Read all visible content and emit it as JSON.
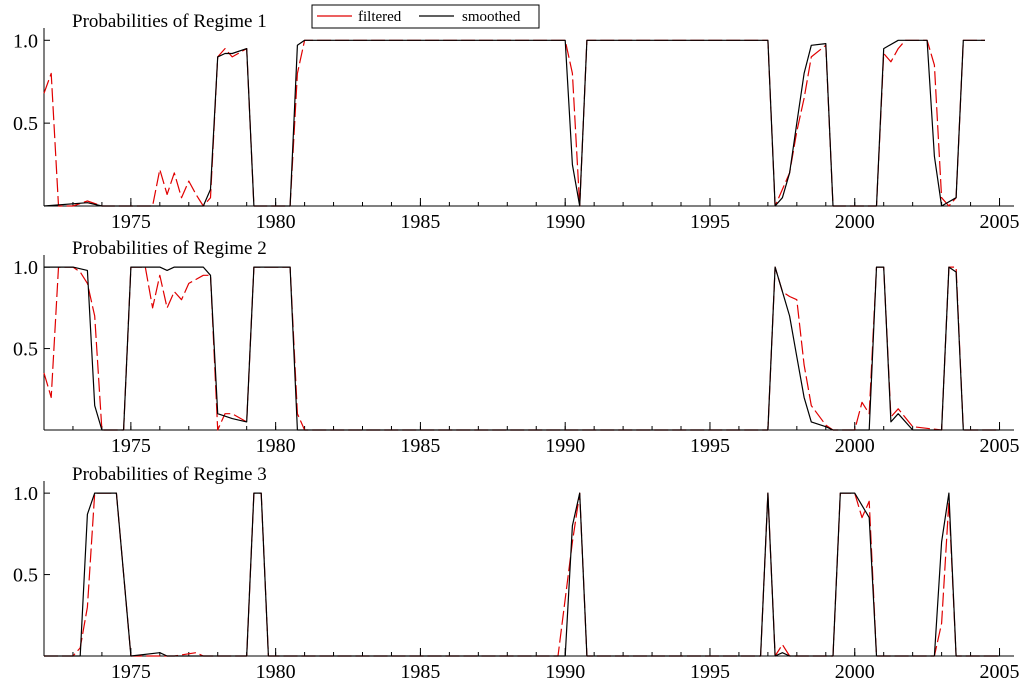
{
  "figure": {
    "legend": {
      "filtered_label": "filtered",
      "smoothed_label": "smoothed",
      "filtered_color": "#e00000",
      "smoothed_color": "#000000",
      "placement": "top, beside first panel title"
    }
  },
  "chart_data": [
    {
      "type": "line",
      "title": "Probabilities of Regime 1",
      "xlabel": "",
      "ylabel": "",
      "xlim": [
        1972.0,
        2005.5
      ],
      "ylim": [
        0,
        1.05
      ],
      "x_ticks": [
        "1975",
        "1980",
        "1985",
        "1990",
        "1995",
        "2000",
        "2005"
      ],
      "y_ticks": [
        "0.5",
        "1.0"
      ],
      "grid": false,
      "series": [
        {
          "name": "filtered",
          "style": "dashed",
          "color": "#e00000",
          "points": [
            [
              1972.0,
              0.68
            ],
            [
              1972.25,
              0.8
            ],
            [
              1972.5,
              0.0
            ],
            [
              1973.0,
              0.0
            ],
            [
              1973.5,
              0.03
            ],
            [
              1974.0,
              0.0
            ],
            [
              1975.0,
              0.0
            ],
            [
              1975.75,
              0.0
            ],
            [
              1976.0,
              0.22
            ],
            [
              1976.25,
              0.07
            ],
            [
              1976.5,
              0.2
            ],
            [
              1976.75,
              0.05
            ],
            [
              1977.0,
              0.15
            ],
            [
              1977.25,
              0.07
            ],
            [
              1977.5,
              0.0
            ],
            [
              1977.75,
              0.05
            ],
            [
              1978.0,
              0.9
            ],
            [
              1978.25,
              0.95
            ],
            [
              1978.5,
              0.9
            ],
            [
              1979.0,
              0.95
            ],
            [
              1979.25,
              0.0
            ],
            [
              1980.5,
              0.0
            ],
            [
              1980.75,
              0.8
            ],
            [
              1981.0,
              1.0
            ],
            [
              1990.0,
              1.0
            ],
            [
              1990.25,
              0.8
            ],
            [
              1990.5,
              0.0
            ],
            [
              1990.75,
              1.0
            ],
            [
              1997.0,
              1.0
            ],
            [
              1997.25,
              0.0
            ],
            [
              1997.5,
              0.1
            ],
            [
              1997.75,
              0.2
            ],
            [
              1998.0,
              0.45
            ],
            [
              1998.25,
              0.65
            ],
            [
              1998.5,
              0.9
            ],
            [
              1999.0,
              0.97
            ],
            [
              1999.25,
              0.0
            ],
            [
              2000.75,
              0.0
            ],
            [
              2001.0,
              0.92
            ],
            [
              2001.25,
              0.87
            ],
            [
              2001.5,
              0.95
            ],
            [
              2001.75,
              1.0
            ],
            [
              2002.5,
              1.0
            ],
            [
              2002.75,
              0.85
            ],
            [
              2003.0,
              0.05
            ],
            [
              2003.25,
              0.0
            ],
            [
              2003.5,
              0.05
            ],
            [
              2003.75,
              1.0
            ],
            [
              2004.5,
              1.0
            ]
          ]
        },
        {
          "name": "smoothed",
          "style": "solid",
          "color": "#000000",
          "points": [
            [
              1972.0,
              0.0
            ],
            [
              1973.5,
              0.02
            ],
            [
              1974.0,
              0.0
            ],
            [
              1977.5,
              0.0
            ],
            [
              1977.75,
              0.1
            ],
            [
              1978.0,
              0.9
            ],
            [
              1978.25,
              0.92
            ],
            [
              1978.5,
              0.92
            ],
            [
              1979.0,
              0.95
            ],
            [
              1979.25,
              0.0
            ],
            [
              1980.5,
              0.0
            ],
            [
              1980.75,
              0.97
            ],
            [
              1981.0,
              1.0
            ],
            [
              1990.0,
              1.0
            ],
            [
              1990.25,
              0.25
            ],
            [
              1990.5,
              0.0
            ],
            [
              1990.75,
              1.0
            ],
            [
              1997.0,
              1.0
            ],
            [
              1997.25,
              0.0
            ],
            [
              1997.5,
              0.05
            ],
            [
              1997.75,
              0.2
            ],
            [
              1998.0,
              0.5
            ],
            [
              1998.25,
              0.8
            ],
            [
              1998.5,
              0.97
            ],
            [
              1999.0,
              0.98
            ],
            [
              1999.25,
              0.0
            ],
            [
              2000.75,
              0.0
            ],
            [
              2001.0,
              0.95
            ],
            [
              2001.5,
              1.0
            ],
            [
              2002.5,
              1.0
            ],
            [
              2002.75,
              0.3
            ],
            [
              2003.0,
              0.0
            ],
            [
              2003.5,
              0.05
            ],
            [
              2003.75,
              1.0
            ],
            [
              2004.5,
              1.0
            ]
          ]
        }
      ]
    },
    {
      "type": "line",
      "title": "Probabilities of Regime 2",
      "xlabel": "",
      "ylabel": "",
      "xlim": [
        1972.0,
        2005.5
      ],
      "ylim": [
        0,
        1.05
      ],
      "x_ticks": [
        "1975",
        "1980",
        "1985",
        "1990",
        "1995",
        "2000",
        "2005"
      ],
      "y_ticks": [
        "0.5",
        "1.0"
      ],
      "grid": false,
      "series": [
        {
          "name": "filtered",
          "style": "dashed",
          "color": "#e00000",
          "points": [
            [
              1972.0,
              0.35
            ],
            [
              1972.25,
              0.2
            ],
            [
              1972.5,
              1.0
            ],
            [
              1973.0,
              1.0
            ],
            [
              1973.25,
              0.97
            ],
            [
              1973.5,
              0.9
            ],
            [
              1973.75,
              0.7
            ],
            [
              1974.0,
              0.0
            ],
            [
              1974.75,
              0.0
            ],
            [
              1975.0,
              1.0
            ],
            [
              1975.5,
              1.0
            ],
            [
              1975.75,
              0.75
            ],
            [
              1976.0,
              0.95
            ],
            [
              1976.25,
              0.75
            ],
            [
              1976.5,
              0.85
            ],
            [
              1976.75,
              0.8
            ],
            [
              1977.0,
              0.9
            ],
            [
              1977.5,
              0.95
            ],
            [
              1977.75,
              0.95
            ],
            [
              1978.0,
              0.0
            ],
            [
              1978.25,
              0.1
            ],
            [
              1978.5,
              0.1
            ],
            [
              1979.0,
              0.05
            ],
            [
              1979.25,
              1.0
            ],
            [
              1980.5,
              1.0
            ],
            [
              1980.75,
              0.1
            ],
            [
              1981.0,
              0.0
            ],
            [
              1997.0,
              0.0
            ],
            [
              1997.25,
              1.0
            ],
            [
              1997.5,
              0.85
            ],
            [
              1997.75,
              0.82
            ],
            [
              1998.0,
              0.8
            ],
            [
              1998.25,
              0.4
            ],
            [
              1998.5,
              0.15
            ],
            [
              1999.0,
              0.03
            ],
            [
              1999.25,
              0.0
            ],
            [
              2000.0,
              0.0
            ],
            [
              2000.25,
              0.17
            ],
            [
              2000.5,
              0.1
            ],
            [
              2000.75,
              1.0
            ],
            [
              2001.0,
              1.0
            ],
            [
              2001.25,
              0.08
            ],
            [
              2001.5,
              0.13
            ],
            [
              2002.0,
              0.02
            ],
            [
              2003.0,
              0.0
            ],
            [
              2003.25,
              1.0
            ],
            [
              2003.5,
              1.0
            ],
            [
              2003.75,
              0.0
            ],
            [
              2005.0,
              0.0
            ]
          ]
        },
        {
          "name": "smoothed",
          "style": "solid",
          "color": "#000000",
          "points": [
            [
              1972.0,
              1.0
            ],
            [
              1973.0,
              1.0
            ],
            [
              1973.5,
              0.98
            ],
            [
              1973.75,
              0.15
            ],
            [
              1974.0,
              0.0
            ],
            [
              1974.75,
              0.0
            ],
            [
              1975.0,
              1.0
            ],
            [
              1976.0,
              1.0
            ],
            [
              1976.25,
              0.98
            ],
            [
              1976.5,
              1.0
            ],
            [
              1977.5,
              1.0
            ],
            [
              1977.75,
              0.95
            ],
            [
              1978.0,
              0.1
            ],
            [
              1978.5,
              0.07
            ],
            [
              1979.0,
              0.05
            ],
            [
              1979.25,
              1.0
            ],
            [
              1980.5,
              1.0
            ],
            [
              1980.75,
              0.0
            ],
            [
              1997.0,
              0.0
            ],
            [
              1997.25,
              1.0
            ],
            [
              1997.5,
              0.85
            ],
            [
              1997.75,
              0.7
            ],
            [
              1998.0,
              0.45
            ],
            [
              1998.25,
              0.2
            ],
            [
              1998.5,
              0.05
            ],
            [
              1999.0,
              0.02
            ],
            [
              1999.25,
              0.0
            ],
            [
              2000.5,
              0.0
            ],
            [
              2000.75,
              1.0
            ],
            [
              2001.0,
              1.0
            ],
            [
              2001.25,
              0.05
            ],
            [
              2001.5,
              0.1
            ],
            [
              2002.0,
              0.0
            ],
            [
              2003.0,
              0.0
            ],
            [
              2003.25,
              1.0
            ],
            [
              2003.5,
              0.97
            ],
            [
              2003.75,
              0.0
            ],
            [
              2005.0,
              0.0
            ]
          ]
        }
      ]
    },
    {
      "type": "line",
      "title": "Probabilities of Regime 3",
      "xlabel": "",
      "ylabel": "",
      "xlim": [
        1972.0,
        2005.5
      ],
      "ylim": [
        0,
        1.05
      ],
      "x_ticks": [
        "1975",
        "1980",
        "1985",
        "1990",
        "1995",
        "2000",
        "2005"
      ],
      "y_ticks": [
        "0.5",
        "1.0"
      ],
      "grid": false,
      "series": [
        {
          "name": "filtered",
          "style": "dashed",
          "color": "#e00000",
          "points": [
            [
              1972.0,
              0.0
            ],
            [
              1973.0,
              0.0
            ],
            [
              1973.25,
              0.05
            ],
            [
              1973.5,
              0.3
            ],
            [
              1973.75,
              1.0
            ],
            [
              1974.5,
              1.0
            ],
            [
              1975.0,
              0.0
            ],
            [
              1976.5,
              0.0
            ],
            [
              1977.25,
              0.02
            ],
            [
              1977.5,
              0.0
            ],
            [
              1979.0,
              0.0
            ],
            [
              1979.25,
              1.0
            ],
            [
              1979.5,
              1.0
            ],
            [
              1979.75,
              0.0
            ],
            [
              1989.75,
              0.0
            ],
            [
              1990.25,
              0.7
            ],
            [
              1990.5,
              1.0
            ],
            [
              1990.75,
              0.0
            ],
            [
              1996.75,
              0.0
            ],
            [
              1997.0,
              1.0
            ],
            [
              1997.25,
              0.0
            ],
            [
              1997.5,
              0.07
            ],
            [
              1997.75,
              0.0
            ],
            [
              1999.25,
              0.0
            ],
            [
              1999.5,
              1.0
            ],
            [
              2000.0,
              1.0
            ],
            [
              2000.25,
              0.85
            ],
            [
              2000.5,
              0.95
            ],
            [
              2000.75,
              0.0
            ],
            [
              2002.75,
              0.0
            ],
            [
              2003.0,
              0.2
            ],
            [
              2003.25,
              0.95
            ],
            [
              2003.5,
              0.0
            ],
            [
              2005.0,
              0.0
            ]
          ]
        },
        {
          "name": "smoothed",
          "style": "solid",
          "color": "#000000",
          "points": [
            [
              1972.0,
              0.0
            ],
            [
              1973.25,
              0.0
            ],
            [
              1973.5,
              0.87
            ],
            [
              1973.75,
              1.0
            ],
            [
              1974.5,
              1.0
            ],
            [
              1975.0,
              0.0
            ],
            [
              1976.0,
              0.02
            ],
            [
              1976.25,
              0.0
            ],
            [
              1979.0,
              0.0
            ],
            [
              1979.25,
              1.0
            ],
            [
              1979.5,
              1.0
            ],
            [
              1979.75,
              0.0
            ],
            [
              1990.0,
              0.0
            ],
            [
              1990.25,
              0.8
            ],
            [
              1990.5,
              1.0
            ],
            [
              1990.75,
              0.0
            ],
            [
              1996.75,
              0.0
            ],
            [
              1997.0,
              1.0
            ],
            [
              1997.25,
              0.0
            ],
            [
              1997.5,
              0.02
            ],
            [
              1997.75,
              0.0
            ],
            [
              1999.25,
              0.0
            ],
            [
              1999.5,
              1.0
            ],
            [
              2000.0,
              1.0
            ],
            [
              2000.5,
              0.85
            ],
            [
              2000.75,
              0.0
            ],
            [
              2002.75,
              0.0
            ],
            [
              2003.0,
              0.7
            ],
            [
              2003.25,
              1.0
            ],
            [
              2003.5,
              0.0
            ],
            [
              2005.0,
              0.0
            ]
          ]
        }
      ]
    }
  ]
}
